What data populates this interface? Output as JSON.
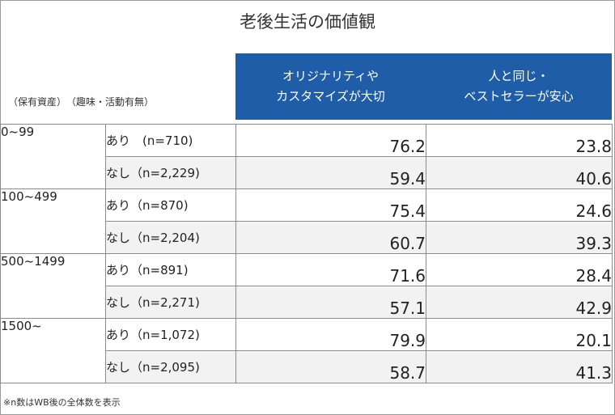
{
  "title": "老後生活の価値観",
  "columns": {
    "asset_header": "（保有資産）",
    "hobby_header": "（趣味・活動有無）",
    "value_headers": [
      [
        "オリジナリティや",
        "カスタマイズが大切"
      ],
      [
        "人と同じ・",
        "ベストセラーが安心"
      ]
    ]
  },
  "rows": [
    {
      "asset": "0~99",
      "hobby": "あり　(n=710)",
      "v1": "76.2",
      "v2": "23.8"
    },
    {
      "asset": "",
      "hobby": "なし（n=2,229)",
      "v1": "59.4",
      "v2": "40.6"
    },
    {
      "asset": "100~499",
      "hobby": "あり（n=870)",
      "v1": "75.4",
      "v2": "24.6"
    },
    {
      "asset": "",
      "hobby": "なし（n=2,204)",
      "v1": "60.7",
      "v2": "39.3"
    },
    {
      "asset": "500~1499",
      "hobby": "あり（n=891)",
      "v1": "71.6",
      "v2": "28.4"
    },
    {
      "asset": "",
      "hobby": "なし（n=2,271)",
      "v1": "57.1",
      "v2": "42.9"
    },
    {
      "asset": "1500~",
      "hobby": "あり（n=1,072)",
      "v1": "79.9",
      "v2": "20.1"
    },
    {
      "asset": "",
      "hobby": "なし（n=2,095)",
      "v1": "58.7",
      "v2": "41.3"
    }
  ],
  "footnote": "※n数はWB後の全体数を表示",
  "colors": {
    "header_bg": "#1f5da8",
    "shade": "#f2f2f2"
  },
  "chart_data": {
    "type": "table",
    "title": "老後生活の価値観",
    "row_groups": [
      "0~99",
      "100~499",
      "500~1499",
      "1500~"
    ],
    "row_subgroups": [
      "あり",
      "なし"
    ],
    "series": [
      {
        "name": "オリジナリティやカスタマイズが大切",
        "values": [
          76.2,
          59.4,
          75.4,
          60.7,
          71.6,
          57.1,
          79.9,
          58.7
        ]
      },
      {
        "name": "人と同じ・ベストセラーが安心",
        "values": [
          23.8,
          40.6,
          24.6,
          39.3,
          28.4,
          42.9,
          20.1,
          41.3
        ]
      }
    ],
    "n": [
      710,
      2229,
      870,
      2204,
      891,
      2271,
      1072,
      2095
    ]
  }
}
